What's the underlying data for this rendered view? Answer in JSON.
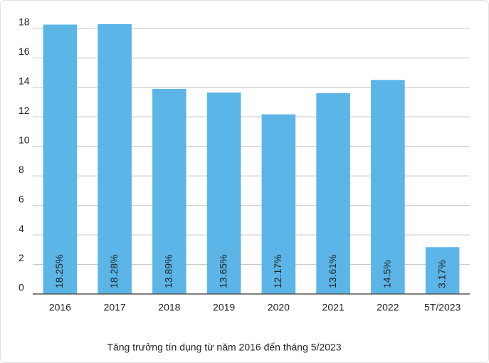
{
  "chart_data": {
    "type": "bar",
    "title": "Tăng trưởng tín dụng từ năm 2016 đến tháng 5/2023",
    "categories": [
      "2016",
      "2017",
      "2018",
      "2019",
      "2020",
      "2021",
      "2022",
      "5T/2023"
    ],
    "values": [
      18.25,
      18.28,
      13.89,
      13.65,
      12.17,
      13.61,
      14.5,
      3.17
    ],
    "value_labels": [
      "18.25%",
      "18.28%",
      "13.89%",
      "13.65%",
      "12.17%",
      "13.61%",
      "14.5%",
      "3.17%"
    ],
    "color": "#5bb5e6",
    "ylim": [
      0,
      19
    ],
    "yticks": [
      0,
      2,
      4,
      6,
      8,
      10,
      12,
      14,
      16,
      18
    ],
    "grid": true
  }
}
